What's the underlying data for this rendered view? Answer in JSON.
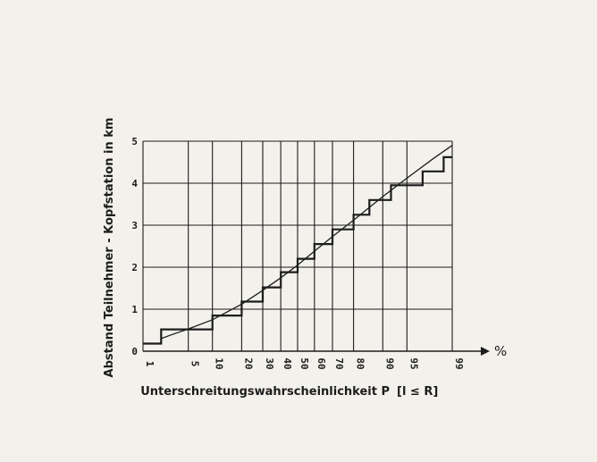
{
  "chart_data": {
    "type": "line",
    "x_scale": "normal-probability",
    "xlabel": "Unterschreitungswahrscheinlichkeit P",
    "xlabel_formula": "[l ≤ R]",
    "x_unit": "%",
    "ylabel": "Abstand Teilnehmer - Kopfstation in km",
    "xlim": [
      1,
      99
    ],
    "ylim": [
      0,
      5
    ],
    "x_ticks": [
      1,
      5,
      10,
      20,
      30,
      40,
      50,
      60,
      70,
      80,
      90,
      95,
      99
    ],
    "x_tick_labels": [
      "1",
      "5",
      "10",
      "20",
      "30",
      "40",
      "50",
      "60",
      "70",
      "80",
      "90",
      "95",
      "99"
    ],
    "y_ticks": [
      0,
      1,
      2,
      3,
      4,
      5
    ],
    "y_tick_labels": [
      "0",
      "1",
      "2",
      "3",
      "4",
      "5"
    ],
    "grid": true,
    "series": [
      {
        "style": "step",
        "points": [
          [
            1,
            0.18
          ],
          [
            2,
            0.18
          ],
          [
            2,
            0.52
          ],
          [
            10,
            0.52
          ],
          [
            10,
            0.85
          ],
          [
            20,
            0.85
          ],
          [
            20,
            1.18
          ],
          [
            30,
            1.18
          ],
          [
            30,
            1.52
          ],
          [
            40,
            1.52
          ],
          [
            40,
            1.88
          ],
          [
            50,
            1.88
          ],
          [
            50,
            2.2
          ],
          [
            60,
            2.2
          ],
          [
            60,
            2.55
          ],
          [
            70,
            2.55
          ],
          [
            70,
            2.9
          ],
          [
            80,
            2.9
          ],
          [
            80,
            3.25
          ],
          [
            86,
            3.25
          ],
          [
            86,
            3.6
          ],
          [
            92,
            3.6
          ],
          [
            92,
            3.95
          ],
          [
            97,
            3.95
          ],
          [
            97,
            4.28
          ],
          [
            98.6,
            4.28
          ],
          [
            98.6,
            4.62
          ],
          [
            99,
            4.62
          ]
        ]
      },
      {
        "style": "fit",
        "points": [
          [
            2,
            0.3
          ],
          [
            3,
            0.4
          ],
          [
            5,
            0.53
          ],
          [
            10,
            0.75
          ],
          [
            20,
            1.12
          ],
          [
            30,
            1.45
          ],
          [
            40,
            1.75
          ],
          [
            50,
            2.05
          ],
          [
            60,
            2.38
          ],
          [
            70,
            2.73
          ],
          [
            80,
            3.12
          ],
          [
            90,
            3.68
          ],
          [
            95,
            4.12
          ],
          [
            98,
            4.6
          ],
          [
            99,
            4.9
          ]
        ]
      }
    ]
  },
  "colors": {
    "ink": "#1c1c1c",
    "paper": "#f3f1ec"
  }
}
